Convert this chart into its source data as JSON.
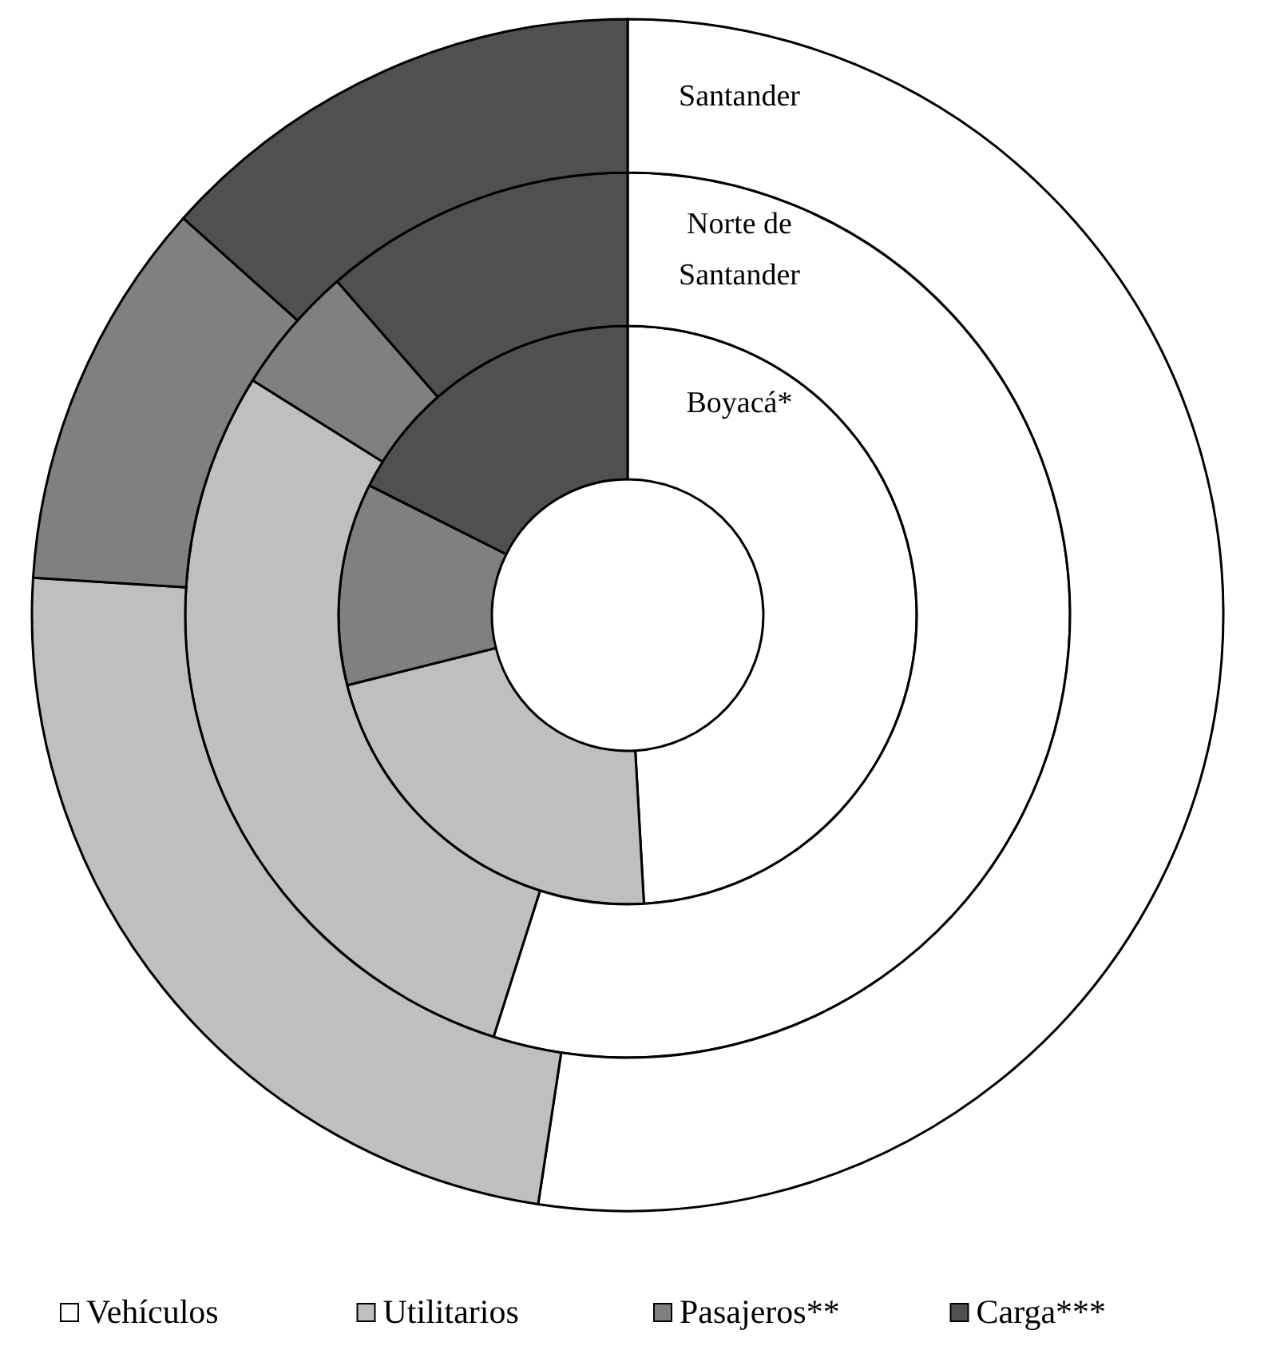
{
  "chart_data": {
    "type": "donut",
    "categories": [
      "Vehículos",
      "Utilitarios",
      "Pasajeros**",
      "Carga***"
    ],
    "colors": [
      "#ffffff",
      "#bfbfbf",
      "#808080",
      "#505050"
    ],
    "series": [
      {
        "name": "Boyacá*",
        "values": [
          49.1,
          22.0,
          11.3,
          17.6
        ]
      },
      {
        "name": "Norte de Santander",
        "values": [
          54.9,
          29.0,
          4.7,
          11.4
        ]
      },
      {
        "name": "Santander",
        "values": [
          52.4,
          23.6,
          10.6,
          13.4
        ]
      }
    ],
    "legend": "bottom"
  }
}
